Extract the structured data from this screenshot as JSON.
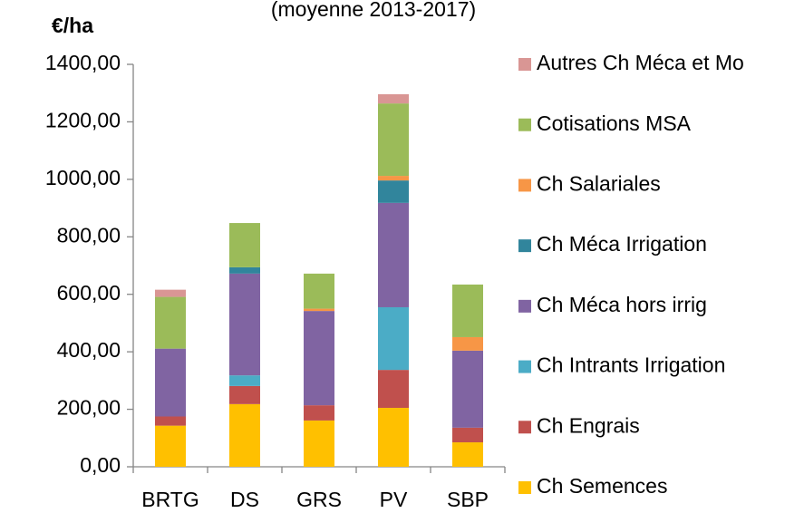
{
  "chart_data": {
    "type": "stacked_bar",
    "title": "(moyenne 2013-2017)",
    "y_label": "€/ha",
    "categories": [
      "BRTG",
      "DS",
      "GRS",
      "PV",
      "SBP"
    ],
    "series": [
      {
        "name": "Ch Semences",
        "color": "#ffc000",
        "values": [
          143,
          218,
          161,
          205,
          85
        ]
      },
      {
        "name": "Ch Engrais",
        "color": "#c0504d",
        "values": [
          32,
          63,
          53,
          132,
          51
        ]
      },
      {
        "name": "Ch Intrants Irrigation",
        "color": "#4bacc6",
        "values": [
          0,
          37,
          0,
          218,
          0
        ]
      },
      {
        "name": "Ch Méca hors irrig",
        "color": "#8064a2",
        "values": [
          236,
          354,
          328,
          363,
          268
        ]
      },
      {
        "name": "Ch Méca Irrigation",
        "color": "#31859c",
        "values": [
          0,
          22,
          0,
          78,
          0
        ]
      },
      {
        "name": "Ch Salariales",
        "color": "#f79646",
        "values": [
          0,
          0,
          8,
          16,
          47
        ]
      },
      {
        "name": "Cotisations MSA",
        "color": "#9bbb59",
        "values": [
          180,
          154,
          122,
          252,
          183
        ]
      },
      {
        "name": "Autres Ch Méca et Mo",
        "color": "#d99694",
        "values": [
          25,
          0,
          0,
          32,
          0
        ]
      }
    ],
    "ylim": [
      0,
      1400
    ],
    "yticks": [
      {
        "value": 0,
        "label": "0,00"
      },
      {
        "value": 200,
        "label": "200,00"
      },
      {
        "value": 400,
        "label": "400,00"
      },
      {
        "value": 600,
        "label": "600,00"
      },
      {
        "value": 800,
        "label": "800,00"
      },
      {
        "value": 1000,
        "label": "1000,00"
      },
      {
        "value": 1200,
        "label": "1200,00"
      },
      {
        "value": 1400,
        "label": "1400,00"
      }
    ],
    "legend": "right"
  }
}
